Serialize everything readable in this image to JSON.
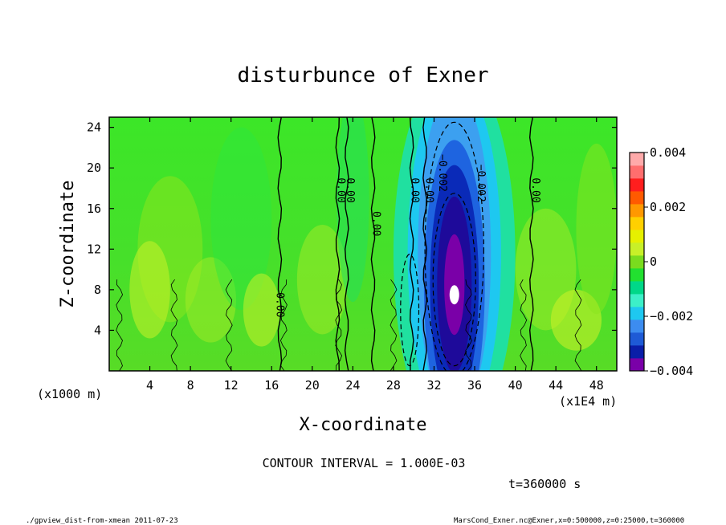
{
  "chart_data": {
    "type": "heatmap",
    "title": "disturbunce of Exner",
    "xlabel": "X-coordinate",
    "ylabel": "Z-coordinate",
    "x_units_label": "(x1E4 m)",
    "z_units_label": "(x1000 m)",
    "x_range": [
      0,
      50
    ],
    "z_range": [
      0,
      25
    ],
    "x_ticks": [
      4,
      8,
      12,
      16,
      20,
      24,
      28,
      32,
      36,
      40,
      44,
      48
    ],
    "z_ticks": [
      4,
      8,
      12,
      16,
      20,
      24
    ],
    "colorbar": {
      "min": -0.004,
      "max": 0.004,
      "tick_values": [
        0.004,
        0.002,
        0,
        -0.002,
        -0.004
      ],
      "tick_labels": [
        "0.004",
        "0.002",
        "0",
        "−0.002",
        "−0.004"
      ],
      "colors": [
        "#7a00a8",
        "#0a1ea8",
        "#1e5ad6",
        "#3c8cf0",
        "#1ec8f0",
        "#3cf0c8",
        "#00d888",
        "#22e030",
        "#7adc1e",
        "#c8f028",
        "#e6f000",
        "#ffd000",
        "#ff9800",
        "#ff5a00",
        "#ff1e1e",
        "#ff6e6e",
        "#ffaaaa"
      ]
    },
    "contour_interval_text": "CONTOUR INTERVAL = 1.000E-03",
    "contour_labels": [
      {
        "text": "0.00",
        "x": 16.5,
        "z": 6.5
      },
      {
        "text": "0.00",
        "x": 22.5,
        "z": 17.8
      },
      {
        "text": "0.00",
        "x": 23.4,
        "z": 17.8
      },
      {
        "text": "0.00",
        "x": 26.0,
        "z": 14.5
      },
      {
        "text": "0.00",
        "x": 29.8,
        "z": 17.8
      },
      {
        "text": "0.00",
        "x": 31.2,
        "z": 17.8
      },
      {
        "text": "−0.002",
        "x": 32.5,
        "z": 19.5
      },
      {
        "text": "−0.002",
        "x": 36.3,
        "z": 18.5
      },
      {
        "text": "0.00",
        "x": 41.7,
        "z": 17.8
      }
    ],
    "min_center": {
      "x": 34.0,
      "z": 7.5
    }
  },
  "annotations": {
    "time": "t=360000 s",
    "footer_left": "./gpview_dist-from-xmean  2011-07-23",
    "footer_right": "MarsCond_Exner.nc@Exner,x=0:500000,z=0:25000,t=360000"
  }
}
